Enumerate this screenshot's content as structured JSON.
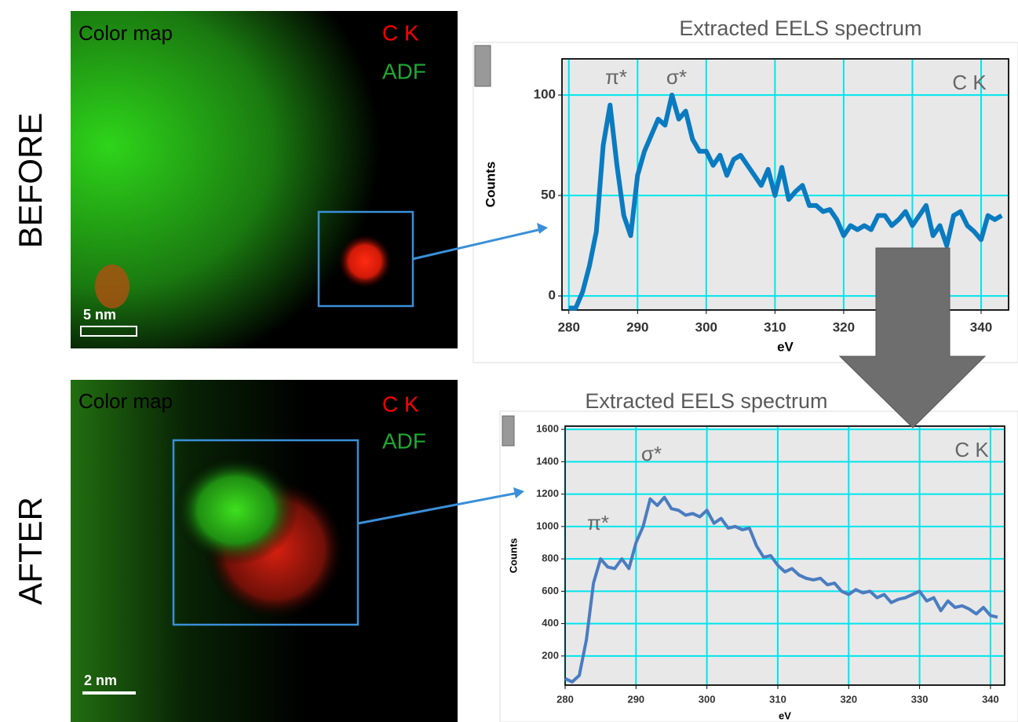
{
  "panels": [
    {
      "label": "BEFORE",
      "map_title": "Color map",
      "channels": [
        "C K",
        "ADF"
      ],
      "scale_bar": "5 nm"
    },
    {
      "label": "AFTER",
      "map_title": "Color map",
      "channels": [
        "C K",
        "ADF"
      ],
      "scale_bar": "2 nm"
    }
  ],
  "chart_data": [
    {
      "type": "line",
      "title": "Extracted EELS spectrum",
      "x_label": "eV",
      "y_label": "Counts",
      "annotations": [
        "π*",
        "σ*",
        "C K"
      ],
      "color": "#0a7bc0",
      "grid": true,
      "grid_color": "#00e5ee",
      "xlim": [
        279,
        344
      ],
      "ylim": [
        -7,
        118
      ],
      "xticks": [
        280,
        290,
        300,
        310,
        320,
        330,
        340
      ],
      "yticks": [
        0,
        50,
        100
      ],
      "x": [
        280,
        281,
        282,
        283,
        284,
        285,
        286,
        287,
        288,
        289,
        290,
        291,
        292,
        293,
        294,
        295,
        296,
        297,
        298,
        299,
        300,
        301,
        302,
        303,
        304,
        305,
        306,
        307,
        308,
        309,
        310,
        311,
        312,
        313,
        314,
        315,
        316,
        317,
        318,
        319,
        320,
        321,
        322,
        323,
        324,
        325,
        326,
        327,
        328,
        329,
        330,
        331,
        332,
        333,
        334,
        335,
        336,
        337,
        338,
        339,
        340,
        341,
        342,
        343
      ],
      "values": [
        -6,
        -6,
        2,
        15,
        32,
        75,
        95,
        65,
        40,
        30,
        60,
        72,
        80,
        88,
        85,
        100,
        88,
        92,
        78,
        72,
        72,
        65,
        70,
        60,
        68,
        70,
        65,
        60,
        55,
        63,
        50,
        64,
        48,
        52,
        55,
        45,
        45,
        42,
        43,
        38,
        30,
        35,
        33,
        35,
        33,
        40,
        40,
        35,
        38,
        42,
        35,
        40,
        45,
        30,
        35,
        25,
        40,
        42,
        35,
        32,
        28,
        40,
        38,
        40
      ]
    },
    {
      "type": "line",
      "title": "Extracted EELS spectrum",
      "x_label": "eV",
      "y_label": "Counts",
      "annotations": [
        "σ*",
        "π*",
        "C K"
      ],
      "color": "#4a7cc0",
      "grid": true,
      "grid_color": "#00e5ee",
      "xlim": [
        280,
        342
      ],
      "ylim": [
        20,
        1620
      ],
      "xticks": [
        280,
        290,
        300,
        310,
        320,
        330,
        340
      ],
      "yticks": [
        200,
        400,
        600,
        800,
        1000,
        1200,
        1400,
        1600
      ],
      "x": [
        280,
        281,
        282,
        283,
        284,
        285,
        286,
        287,
        288,
        289,
        290,
        291,
        292,
        293,
        294,
        295,
        296,
        297,
        298,
        299,
        300,
        301,
        302,
        303,
        304,
        305,
        306,
        307,
        308,
        309,
        310,
        311,
        312,
        313,
        314,
        315,
        316,
        317,
        318,
        319,
        320,
        321,
        322,
        323,
        324,
        325,
        326,
        327,
        328,
        329,
        330,
        331,
        332,
        333,
        334,
        335,
        336,
        337,
        338,
        339,
        340,
        341
      ],
      "values": [
        60,
        40,
        80,
        300,
        650,
        800,
        750,
        740,
        800,
        740,
        900,
        1000,
        1170,
        1130,
        1180,
        1110,
        1100,
        1070,
        1080,
        1060,
        1100,
        1020,
        1050,
        990,
        1000,
        980,
        990,
        880,
        810,
        820,
        760,
        720,
        740,
        700,
        680,
        670,
        680,
        640,
        650,
        600,
        580,
        610,
        590,
        600,
        560,
        580,
        530,
        550,
        560,
        580,
        600,
        540,
        560,
        480,
        540,
        500,
        510,
        490,
        460,
        500,
        450,
        440
      ]
    }
  ]
}
